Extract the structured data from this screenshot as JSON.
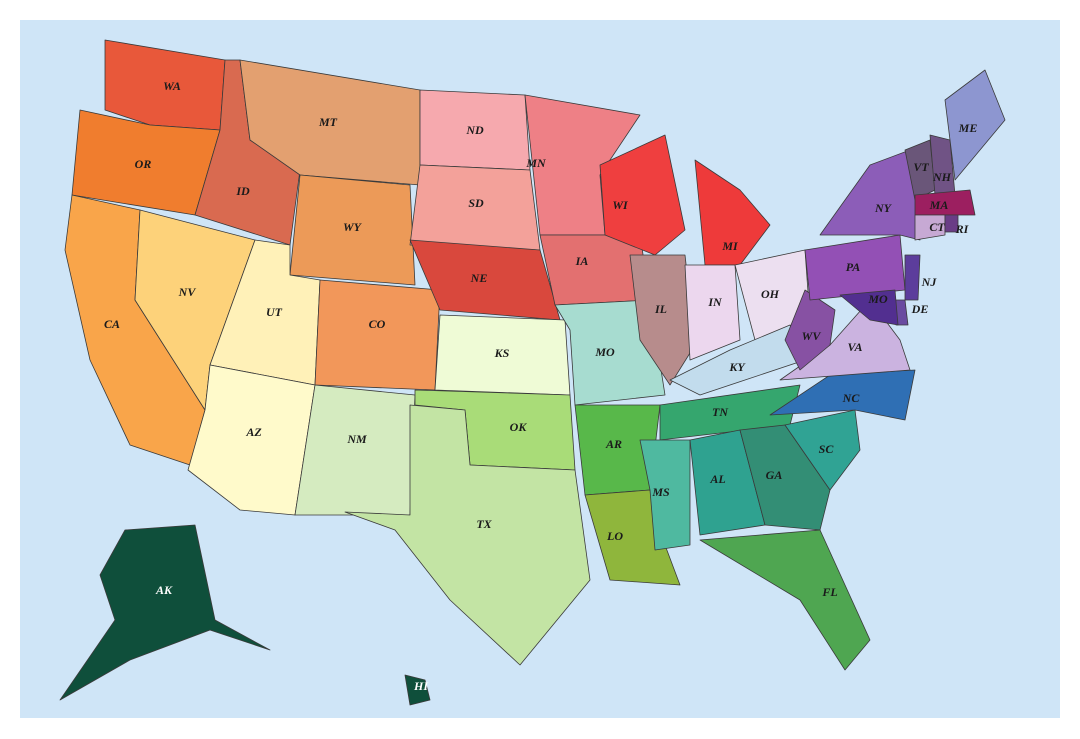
{
  "states": [
    {
      "label": "WA"
    },
    {
      "label": "OR"
    },
    {
      "label": "CA"
    },
    {
      "label": "ID"
    },
    {
      "label": "NV"
    },
    {
      "label": "MT"
    },
    {
      "label": "WY"
    },
    {
      "label": "UT"
    },
    {
      "label": "AZ"
    },
    {
      "label": "CO"
    },
    {
      "label": "NM"
    },
    {
      "label": "ND"
    },
    {
      "label": "SD"
    },
    {
      "label": "NE"
    },
    {
      "label": "KS"
    },
    {
      "label": "OK"
    },
    {
      "label": "TX"
    },
    {
      "label": "MN"
    },
    {
      "label": "IA"
    },
    {
      "label": "MO"
    },
    {
      "label": "AR"
    },
    {
      "label": "LO"
    },
    {
      "label": "WI"
    },
    {
      "label": "MI"
    },
    {
      "label": "IL"
    },
    {
      "label": "IN"
    },
    {
      "label": "OH"
    },
    {
      "label": "KY"
    },
    {
      "label": "TN"
    },
    {
      "label": "MS"
    },
    {
      "label": "AL"
    },
    {
      "label": "GA"
    },
    {
      "label": "FL"
    },
    {
      "label": "SC"
    },
    {
      "label": "NC"
    },
    {
      "label": "VA"
    },
    {
      "label": "WV"
    },
    {
      "label": "PA"
    },
    {
      "label": "NY"
    },
    {
      "label": "VT"
    },
    {
      "label": "NH"
    },
    {
      "label": "ME"
    },
    {
      "label": "MA"
    },
    {
      "label": "CT"
    },
    {
      "label": "RI"
    },
    {
      "label": "NJ"
    },
    {
      "label": "DE"
    },
    {
      "label": "MO"
    },
    {
      "label": "AK"
    },
    {
      "label": "HI"
    }
  ]
}
